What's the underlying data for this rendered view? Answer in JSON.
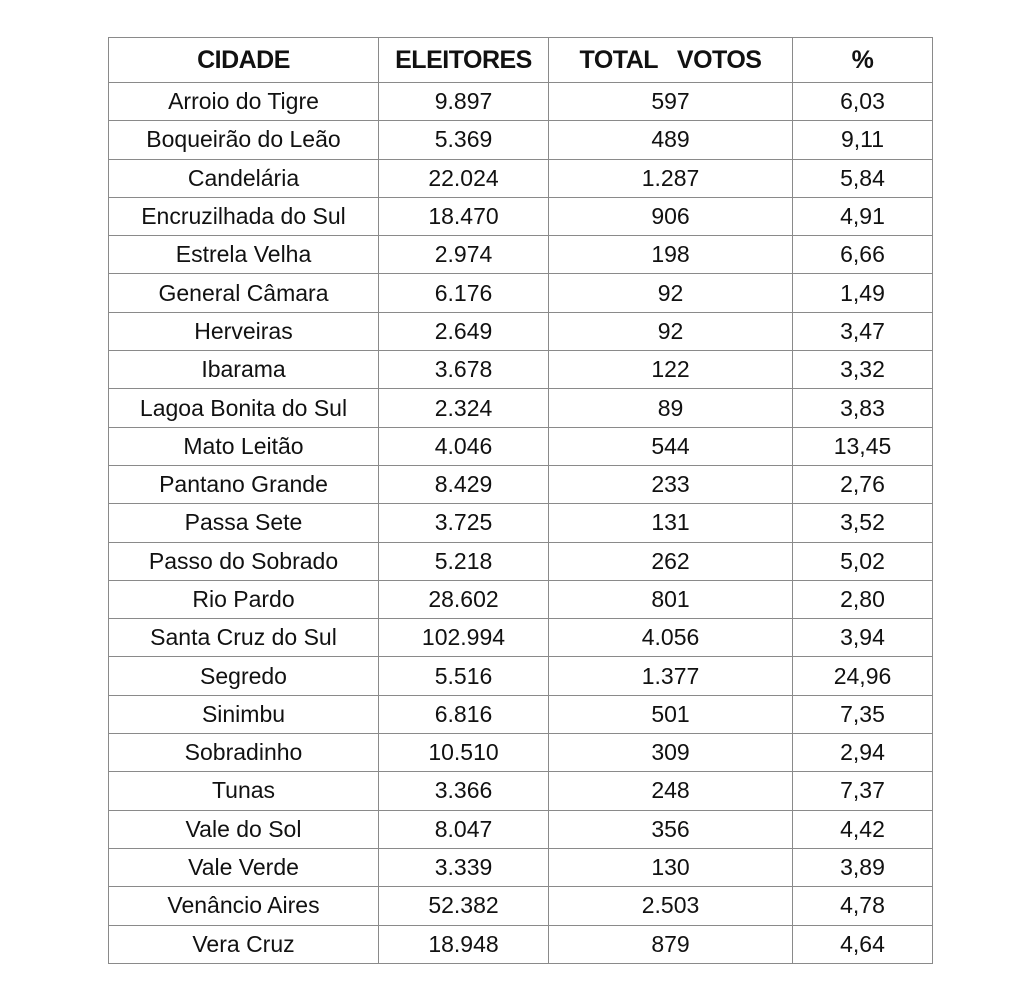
{
  "table": {
    "headers": [
      "CIDADE",
      "ELEITORES",
      "TOTAL   VOTOS",
      "%"
    ],
    "rows": [
      [
        "Arroio do Tigre",
        "9.897",
        "597",
        "6,03"
      ],
      [
        "Boqueirão do Leão",
        "5.369",
        "489",
        "9,11"
      ],
      [
        "Candelária",
        "22.024",
        "1.287",
        "5,84"
      ],
      [
        "Encruzilhada do Sul",
        "18.470",
        "906",
        "4,91"
      ],
      [
        "Estrela Velha",
        "2.974",
        "198",
        "6,66"
      ],
      [
        "General Câmara",
        "6.176",
        "92",
        "1,49"
      ],
      [
        "Herveiras",
        "2.649",
        "92",
        "3,47"
      ],
      [
        "Ibarama",
        "3.678",
        "122",
        "3,32"
      ],
      [
        "Lagoa Bonita do Sul",
        "2.324",
        "89",
        "3,83"
      ],
      [
        "Mato Leitão",
        "4.046",
        "544",
        "13,45"
      ],
      [
        "Pantano Grande",
        "8.429",
        "233",
        "2,76"
      ],
      [
        "Passa Sete",
        "3.725",
        "131",
        "3,52"
      ],
      [
        "Passo do Sobrado",
        "5.218",
        "262",
        "5,02"
      ],
      [
        "Rio Pardo",
        "28.602",
        "801",
        "2,80"
      ],
      [
        "Santa Cruz do Sul",
        "102.994",
        "4.056",
        "3,94"
      ],
      [
        "Segredo",
        "5.516",
        "1.377",
        "24,96"
      ],
      [
        "Sinimbu",
        "6.816",
        "501",
        "7,35"
      ],
      [
        "Sobradinho",
        "10.510",
        "309",
        "2,94"
      ],
      [
        "Tunas",
        "3.366",
        "248",
        "7,37"
      ],
      [
        "Vale do Sol",
        "8.047",
        "356",
        "4,42"
      ],
      [
        "Vale Verde",
        "3.339",
        "130",
        "3,89"
      ],
      [
        "Venâncio Aires",
        "52.382",
        "2.503",
        "4,78"
      ],
      [
        "Vera Cruz",
        "18.948",
        "879",
        "4,64"
      ]
    ]
  }
}
